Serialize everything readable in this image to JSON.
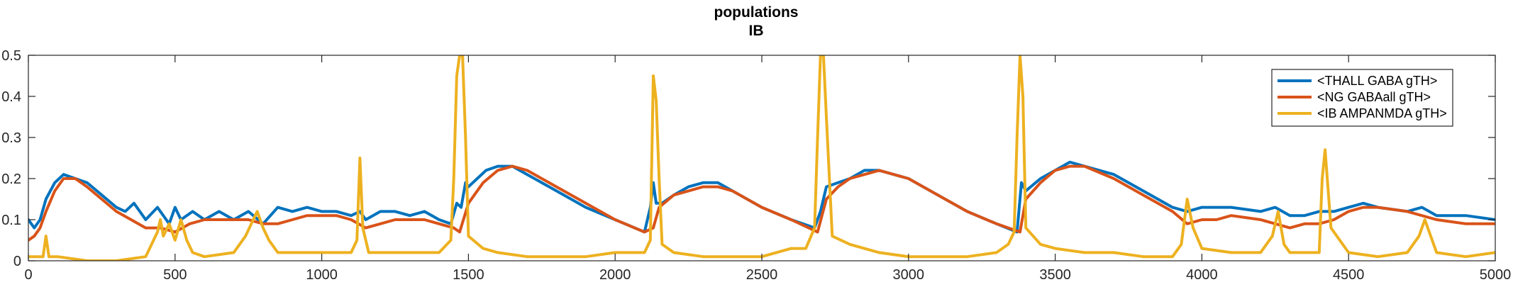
{
  "chart_data": {
    "type": "line",
    "title": "populations",
    "subtitle": "IB",
    "xlabel": "",
    "ylabel": "",
    "xlim": [
      0,
      5000
    ],
    "ylim": [
      0,
      0.5
    ],
    "xticks": [
      0,
      500,
      1000,
      1500,
      2000,
      2500,
      3000,
      3500,
      4000,
      4500,
      5000
    ],
    "yticks": [
      0,
      0.1,
      0.2,
      0.3,
      0.4,
      0.5
    ],
    "ytick_labels": [
      "0",
      "0.1",
      "0.2",
      "0.3",
      "0.4",
      "0.5"
    ],
    "grid": false,
    "legend_position": "top-right",
    "series": [
      {
        "name": "<THALL GABA gTH>",
        "color": "#0072BD",
        "x": [
          0,
          20,
          40,
          60,
          90,
          120,
          160,
          200,
          250,
          300,
          330,
          360,
          400,
          440,
          480,
          500,
          520,
          560,
          600,
          650,
          700,
          750,
          800,
          850,
          900,
          950,
          1000,
          1050,
          1100,
          1130,
          1150,
          1200,
          1250,
          1300,
          1350,
          1400,
          1440,
          1460,
          1475,
          1490,
          1500,
          1530,
          1560,
          1600,
          1650,
          1700,
          1800,
          1900,
          2000,
          2100,
          2120,
          2130,
          2140,
          2160,
          2200,
          2250,
          2300,
          2350,
          2400,
          2500,
          2600,
          2680,
          2700,
          2720,
          2760,
          2800,
          2850,
          2900,
          3000,
          3100,
          3200,
          3300,
          3370,
          3385,
          3400,
          3450,
          3500,
          3550,
          3600,
          3700,
          3800,
          3900,
          3950,
          4000,
          4050,
          4100,
          4200,
          4250,
          4300,
          4350,
          4400,
          4450,
          4500,
          4550,
          4600,
          4700,
          4750,
          4800,
          4900,
          5000
        ],
        "y": [
          0.1,
          0.08,
          0.1,
          0.15,
          0.19,
          0.21,
          0.2,
          0.19,
          0.16,
          0.13,
          0.12,
          0.14,
          0.1,
          0.13,
          0.09,
          0.13,
          0.1,
          0.12,
          0.1,
          0.12,
          0.1,
          0.12,
          0.09,
          0.13,
          0.12,
          0.13,
          0.12,
          0.12,
          0.11,
          0.12,
          0.1,
          0.12,
          0.12,
          0.11,
          0.12,
          0.1,
          0.09,
          0.14,
          0.13,
          0.19,
          0.18,
          0.2,
          0.22,
          0.23,
          0.23,
          0.21,
          0.17,
          0.13,
          0.1,
          0.07,
          0.13,
          0.19,
          0.14,
          0.14,
          0.16,
          0.18,
          0.19,
          0.19,
          0.17,
          0.13,
          0.1,
          0.08,
          0.12,
          0.18,
          0.19,
          0.2,
          0.22,
          0.22,
          0.2,
          0.16,
          0.12,
          0.09,
          0.07,
          0.19,
          0.17,
          0.2,
          0.22,
          0.24,
          0.23,
          0.21,
          0.17,
          0.13,
          0.12,
          0.13,
          0.13,
          0.13,
          0.12,
          0.13,
          0.11,
          0.11,
          0.12,
          0.12,
          0.13,
          0.14,
          0.13,
          0.12,
          0.13,
          0.11,
          0.11,
          0.1
        ]
      },
      {
        "name": "<NG GABAall gTH>",
        "color": "#D95319",
        "x": [
          0,
          20,
          40,
          60,
          90,
          120,
          160,
          200,
          250,
          300,
          350,
          400,
          450,
          500,
          550,
          600,
          700,
          750,
          800,
          850,
          900,
          950,
          1000,
          1050,
          1100,
          1150,
          1200,
          1250,
          1300,
          1350,
          1400,
          1450,
          1470,
          1500,
          1550,
          1600,
          1650,
          1700,
          1800,
          1900,
          2000,
          2100,
          2130,
          2150,
          2200,
          2250,
          2300,
          2350,
          2400,
          2500,
          2600,
          2690,
          2720,
          2760,
          2800,
          2850,
          2900,
          3000,
          3100,
          3200,
          3300,
          3380,
          3400,
          3450,
          3500,
          3550,
          3600,
          3700,
          3800,
          3900,
          3950,
          4000,
          4050,
          4100,
          4200,
          4250,
          4300,
          4350,
          4400,
          4450,
          4500,
          4550,
          4600,
          4700,
          4800,
          4900,
          5000
        ],
        "y": [
          0.05,
          0.06,
          0.08,
          0.12,
          0.17,
          0.2,
          0.2,
          0.18,
          0.15,
          0.12,
          0.1,
          0.08,
          0.08,
          0.07,
          0.09,
          0.1,
          0.1,
          0.1,
          0.09,
          0.09,
          0.1,
          0.11,
          0.11,
          0.11,
          0.1,
          0.08,
          0.09,
          0.1,
          0.1,
          0.1,
          0.09,
          0.08,
          0.07,
          0.14,
          0.19,
          0.22,
          0.23,
          0.22,
          0.18,
          0.14,
          0.1,
          0.07,
          0.08,
          0.13,
          0.16,
          0.17,
          0.18,
          0.18,
          0.17,
          0.13,
          0.1,
          0.07,
          0.15,
          0.18,
          0.2,
          0.21,
          0.22,
          0.2,
          0.16,
          0.12,
          0.09,
          0.07,
          0.15,
          0.19,
          0.22,
          0.23,
          0.23,
          0.2,
          0.16,
          0.12,
          0.09,
          0.1,
          0.1,
          0.11,
          0.1,
          0.09,
          0.08,
          0.09,
          0.09,
          0.1,
          0.12,
          0.13,
          0.13,
          0.12,
          0.1,
          0.09,
          0.09
        ]
      },
      {
        "name": "<IB AMPANMDA gTH>",
        "color": "#EDB120",
        "x": [
          0,
          50,
          60,
          70,
          100,
          200,
          300,
          400,
          420,
          440,
          450,
          460,
          480,
          500,
          520,
          540,
          560,
          600,
          700,
          740,
          760,
          780,
          800,
          820,
          850,
          900,
          1000,
          1100,
          1120,
          1130,
          1140,
          1160,
          1200,
          1300,
          1400,
          1440,
          1450,
          1460,
          1470,
          1480,
          1490,
          1500,
          1550,
          1600,
          1700,
          1800,
          1900,
          2000,
          2100,
          2120,
          2130,
          2140,
          2150,
          2160,
          2200,
          2300,
          2400,
          2500,
          2600,
          2650,
          2680,
          2690,
          2700,
          2710,
          2720,
          2740,
          2800,
          2900,
          3000,
          3100,
          3200,
          3300,
          3340,
          3360,
          3370,
          3380,
          3390,
          3400,
          3450,
          3500,
          3600,
          3700,
          3800,
          3900,
          3930,
          3950,
          3970,
          4000,
          4100,
          4200,
          4240,
          4260,
          4280,
          4300,
          4400,
          4410,
          4420,
          4440,
          4500,
          4600,
          4700,
          4740,
          4760,
          4780,
          4800,
          4900,
          5000
        ],
        "y": [
          0.01,
          0.01,
          0.06,
          0.01,
          0.01,
          0.0,
          0.0,
          0.01,
          0.04,
          0.07,
          0.1,
          0.06,
          0.09,
          0.05,
          0.1,
          0.05,
          0.02,
          0.01,
          0.02,
          0.06,
          0.09,
          0.12,
          0.08,
          0.05,
          0.02,
          0.02,
          0.02,
          0.02,
          0.05,
          0.25,
          0.08,
          0.02,
          0.02,
          0.02,
          0.02,
          0.05,
          0.2,
          0.45,
          0.5,
          0.5,
          0.3,
          0.06,
          0.03,
          0.02,
          0.01,
          0.01,
          0.01,
          0.02,
          0.02,
          0.05,
          0.45,
          0.39,
          0.2,
          0.04,
          0.02,
          0.01,
          0.01,
          0.01,
          0.03,
          0.03,
          0.08,
          0.3,
          0.5,
          0.5,
          0.35,
          0.06,
          0.04,
          0.02,
          0.01,
          0.01,
          0.01,
          0.02,
          0.04,
          0.07,
          0.3,
          0.5,
          0.4,
          0.08,
          0.04,
          0.03,
          0.02,
          0.02,
          0.01,
          0.01,
          0.04,
          0.15,
          0.08,
          0.03,
          0.02,
          0.02,
          0.06,
          0.12,
          0.04,
          0.02,
          0.02,
          0.2,
          0.27,
          0.08,
          0.02,
          0.01,
          0.02,
          0.06,
          0.1,
          0.06,
          0.02,
          0.01,
          0.02
        ]
      }
    ]
  }
}
